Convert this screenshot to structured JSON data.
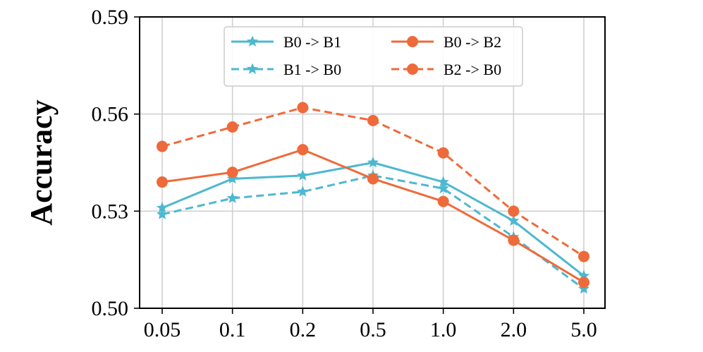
{
  "chart_data": {
    "type": "line",
    "title": "",
    "xlabel": "",
    "ylabel": "Accuracy",
    "categories": [
      "0.05",
      "0.1",
      "0.2",
      "0.5",
      "1.0",
      "2.0",
      "5.0"
    ],
    "ylim": [
      0.5,
      0.59
    ],
    "yticks": [
      "0.50",
      "0.53",
      "0.56",
      "0.59"
    ],
    "grid": true,
    "legend_position": "top-center",
    "series": [
      {
        "name": "B0 -> B1",
        "values": [
          0.531,
          0.54,
          0.541,
          0.545,
          0.539,
          0.527,
          0.51
        ],
        "color": "#4db8d0",
        "style": "solid",
        "marker": "star"
      },
      {
        "name": "B1 -> B0",
        "values": [
          0.529,
          0.534,
          0.536,
          0.541,
          0.537,
          0.522,
          0.506
        ],
        "color": "#4db8d0",
        "style": "dashed",
        "marker": "star"
      },
      {
        "name": "B0 -> B2",
        "values": [
          0.539,
          0.542,
          0.549,
          0.54,
          0.533,
          0.521,
          0.508
        ],
        "color": "#ee6a3a",
        "style": "solid",
        "marker": "circle"
      },
      {
        "name": "B2 -> B0",
        "values": [
          0.55,
          0.556,
          0.562,
          0.558,
          0.548,
          0.53,
          0.516
        ],
        "color": "#ee6a3a",
        "style": "dashed",
        "marker": "circle"
      }
    ]
  }
}
